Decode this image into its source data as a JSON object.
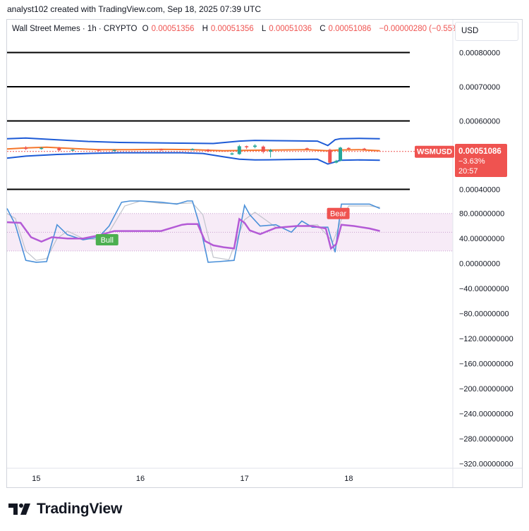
{
  "header": {
    "text": "analyst102 created with TradingView.com, Sep 18, 2025 07:39 UTC"
  },
  "legend": {
    "symbol": "Wall Street Memes · 1h · CRYPTO",
    "o_label": "O",
    "o_value": "0.00051356",
    "h_label": "H",
    "h_value": "0.00051356",
    "l_label": "L",
    "l_value": "0.00051036",
    "c_label": "C",
    "c_value": "0.00051086",
    "change": "−0.00000280 (−0.55%)"
  },
  "currency": "USD",
  "price_tag": {
    "symbol": "WSMUSD",
    "price": "0.00051086",
    "change": "−3.63%",
    "countdown": "20:57"
  },
  "logo": {
    "text": "TradingView",
    "icon": "tradingview-logo-icon"
  },
  "colors": {
    "bb": "#1e5bd6",
    "basis": "#f5762b",
    "bull": "#26a69a",
    "bear": "#ef5350",
    "stoch_k": "#4a90d9",
    "stoch_d": "#c0c4cc",
    "rsi": "#b45ad6",
    "bull_label": "#4caf50"
  },
  "chart_data": [
    {
      "type": "line",
      "name": "price-panel",
      "y_tick_labels": [
        "0.00080000",
        "0.00070000",
        "0.00060000",
        "0.00040000"
      ],
      "y_ticks": [
        0.0008,
        0.0007,
        0.0006,
        0.0004
      ],
      "ylim": [
        0.00037,
        0.00083
      ],
      "x_tick_labels": [
        "15",
        "16",
        "17",
        "18"
      ],
      "x_ticks": [
        15,
        16,
        17,
        18
      ],
      "xlim": [
        14.72,
        19.0
      ],
      "horizontal_levels": [
        0.0008,
        0.0007,
        0.0006,
        0.0004
      ],
      "bb_upper": {
        "x": [
          14.72,
          14.9,
          15.2,
          15.5,
          15.8,
          16.1,
          16.4,
          16.7,
          16.95,
          17.1,
          17.4,
          17.7,
          17.8,
          17.87,
          17.92,
          18.1,
          18.3
        ],
        "y": [
          0.000548,
          0.00055,
          0.000545,
          0.00054,
          0.000537,
          0.000536,
          0.000535,
          0.000534,
          0.000541,
          0.000543,
          0.000542,
          0.000541,
          0.000528,
          0.000545,
          0.000548,
          0.000549,
          0.000548
        ]
      },
      "bb_lower": {
        "x": [
          14.72,
          14.9,
          15.2,
          15.5,
          15.8,
          16.1,
          16.4,
          16.6,
          16.8,
          16.95,
          17.1,
          17.4,
          17.7,
          17.8,
          17.87,
          17.92,
          18.1,
          18.3
        ],
        "y": [
          0.000491,
          0.000497,
          0.000502,
          0.000505,
          0.000507,
          0.000507,
          0.000507,
          0.000505,
          0.000495,
          0.000488,
          0.000486,
          0.000487,
          0.000488,
          0.000474,
          0.00048,
          0.000485,
          0.000486,
          0.000485
        ]
      },
      "bb_basis": {
        "x": [
          14.72,
          14.9,
          15.1,
          15.3,
          15.6,
          15.9,
          16.2,
          16.5,
          16.8,
          17.0,
          17.3,
          17.6,
          17.8,
          17.9,
          18.1,
          18.3
        ],
        "y": [
          0.000518,
          0.000521,
          0.000523,
          0.00052,
          0.000516,
          0.000516,
          0.000517,
          0.000516,
          0.000513,
          0.000514,
          0.000515,
          0.000516,
          0.000513,
          0.000515,
          0.000516,
          0.000513
        ]
      },
      "candles": [
        {
          "x": 14.9,
          "o": 0.000522,
          "c": 0.000518,
          "h": 0.000526,
          "l": 0.000515
        },
        {
          "x": 15.05,
          "o": 0.000519,
          "c": 0.000521,
          "h": 0.000524,
          "l": 0.000516
        },
        {
          "x": 15.22,
          "o": 0.000521,
          "c": 0.000514,
          "h": 0.000524,
          "l": 0.000512
        },
        {
          "x": 15.35,
          "o": 0.000515,
          "c": 0.000516,
          "h": 0.000518,
          "l": 0.000512
        },
        {
          "x": 15.6,
          "o": 0.000516,
          "c": 0.000513,
          "h": 0.000518,
          "l": 0.000511
        },
        {
          "x": 15.75,
          "o": 0.000513,
          "c": 0.000515,
          "h": 0.000517,
          "l": 0.000511
        },
        {
          "x": 16.2,
          "o": 0.000517,
          "c": 0.000515,
          "h": 0.000519,
          "l": 0.000513
        },
        {
          "x": 16.5,
          "o": 0.000517,
          "c": 0.000518,
          "h": 0.00052,
          "l": 0.000514
        },
        {
          "x": 16.65,
          "o": 0.000516,
          "c": 0.000511,
          "h": 0.000518,
          "l": 0.000509
        },
        {
          "x": 16.88,
          "o": 0.000503,
          "c": 0.000505,
          "h": 0.000508,
          "l": 0.0005
        },
        {
          "x": 16.95,
          "o": 0.000503,
          "c": 0.000526,
          "h": 0.00053,
          "l": 0.000501
        },
        {
          "x": 17.02,
          "o": 0.000526,
          "c": 0.000523,
          "h": 0.000528,
          "l": 0.000518
        },
        {
          "x": 17.1,
          "o": 0.000524,
          "c": 0.000528,
          "h": 0.000532,
          "l": 0.00052
        },
        {
          "x": 17.18,
          "o": 0.000525,
          "c": 0.00051,
          "h": 0.000528,
          "l": 0.000505
        },
        {
          "x": 17.25,
          "o": 0.00051,
          "c": 0.000515,
          "h": 0.000518,
          "l": 0.000493
        },
        {
          "x": 17.6,
          "o": 0.00052,
          "c": 0.000518,
          "h": 0.000522,
          "l": 0.000516
        },
        {
          "x": 17.82,
          "o": 0.000516,
          "c": 0.000478,
          "h": 0.000519,
          "l": 0.000475
        },
        {
          "x": 17.88,
          "o": 0.000478,
          "c": 0.000483,
          "h": 0.000486,
          "l": 0.000476
        },
        {
          "x": 17.92,
          "o": 0.000484,
          "c": 0.000522,
          "h": 0.000524,
          "l": 0.000482
        },
        {
          "x": 18.0,
          "o": 0.000521,
          "c": 0.000519,
          "h": 0.000523,
          "l": 0.000517
        },
        {
          "x": 18.15,
          "o": 0.000519,
          "c": 0.000518,
          "h": 0.000521,
          "l": 0.000516
        }
      ],
      "last_price": 0.00051086
    },
    {
      "type": "line",
      "name": "oscillator-panel",
      "y_tick_labels": [
        "80.00000000",
        "40.00000000",
        "0.00000000",
        "−40.00000000",
        "−80.00000000",
        "−120.00000000",
        "−160.00000000",
        "−200.00000000",
        "−240.00000000",
        "−280.00000000",
        "−320.00000000"
      ],
      "y_ticks": [
        80,
        40,
        0,
        -40,
        -80,
        -120,
        -160,
        -200,
        -240,
        -280,
        -320
      ],
      "ylim": [
        -332,
        100
      ],
      "xlim": [
        14.72,
        19.0
      ],
      "band": [
        20,
        80
      ],
      "mid_line": 50,
      "stoch_k": {
        "x": [
          14.72,
          14.8,
          14.9,
          15.0,
          15.1,
          15.2,
          15.3,
          15.45,
          15.6,
          15.7,
          15.82,
          15.9,
          16.0,
          16.2,
          16.35,
          16.45,
          16.5,
          16.58,
          16.65,
          16.75,
          16.9,
          17.0,
          17.05,
          17.15,
          17.3,
          17.45,
          17.55,
          17.65,
          17.8,
          17.87,
          17.93,
          18.0,
          18.2,
          18.3
        ],
        "y": [
          88,
          62,
          5,
          2,
          3,
          62,
          46,
          38,
          42,
          60,
          98,
          100,
          100,
          98,
          95,
          100,
          100,
          55,
          2,
          3,
          5,
          93,
          78,
          60,
          62,
          50,
          68,
          58,
          58,
          18,
          95,
          95,
          95,
          88
        ]
      },
      "stoch_d": {
        "x": [
          14.72,
          14.8,
          14.9,
          15.0,
          15.1,
          15.2,
          15.3,
          15.45,
          15.6,
          15.7,
          15.85,
          16.0,
          16.2,
          16.4,
          16.5,
          16.6,
          16.7,
          16.85,
          17.0,
          17.1,
          17.3,
          17.5,
          17.7,
          17.85,
          17.93,
          18.0,
          18.2,
          18.3
        ],
        "y": [
          80,
          72,
          20,
          5,
          8,
          40,
          52,
          40,
          38,
          50,
          92,
          100,
          96,
          96,
          97,
          78,
          10,
          6,
          70,
          82,
          58,
          60,
          62,
          35,
          70,
          92,
          92,
          90
        ]
      },
      "rsi": {
        "x": [
          14.72,
          14.85,
          14.95,
          15.05,
          15.15,
          15.3,
          15.45,
          15.6,
          15.75,
          15.85,
          16.0,
          16.2,
          16.4,
          16.45,
          16.55,
          16.62,
          16.7,
          16.8,
          16.9,
          16.95,
          17.0,
          17.05,
          17.15,
          17.3,
          17.5,
          17.65,
          17.78,
          17.83,
          17.88,
          17.93,
          18.05,
          18.2,
          18.3
        ],
        "y": [
          66,
          65,
          42,
          35,
          42,
          40,
          40,
          45,
          52,
          52,
          52,
          52,
          62,
          63,
          63,
          36,
          29,
          26,
          24,
          71,
          65,
          53,
          47,
          57,
          60,
          60,
          56,
          24,
          31,
          62,
          60,
          56,
          52
        ]
      },
      "labels": [
        {
          "text": "Bull",
          "x": 15.68,
          "y": 38,
          "kind": "bull"
        },
        {
          "text": "Bear",
          "x": 17.9,
          "y": 80,
          "kind": "bear"
        }
      ]
    }
  ]
}
